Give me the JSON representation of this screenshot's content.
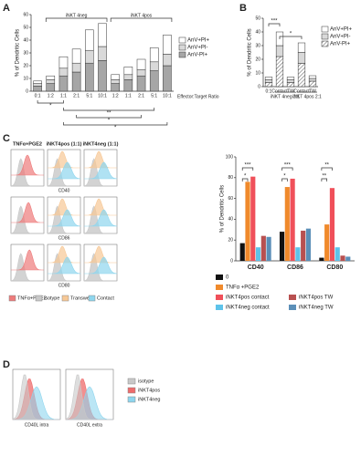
{
  "panel_labels": [
    "A",
    "B",
    "C",
    "D"
  ],
  "chart_data": [
    {
      "type": "stacked_bar",
      "ylabel": "% of Dendritic Cells",
      "xlabel": "Effector:Target Ratio",
      "categories": [
        "0:1",
        "1:2",
        "1:1",
        "2:1",
        "5:1",
        "10:1",
        "1:2",
        "1:1",
        "2:1",
        "5:1",
        "10:1"
      ],
      "groups": [
        "iNKT 4neg",
        "iNKT 4pos"
      ],
      "series": [
        {
          "name": "AnV-PI+",
          "color": "#a6a6a6",
          "values": [
            4,
            6,
            12,
            15,
            22,
            24,
            6,
            9,
            12,
            16,
            20
          ]
        },
        {
          "name": "AnV+PI-",
          "color": "#d9d9d9",
          "values": [
            2,
            3,
            6,
            7,
            10,
            11,
            3,
            4,
            5,
            7,
            9
          ]
        },
        {
          "name": "AnV+PI+",
          "color": "#ffffff",
          "values": [
            2,
            3,
            9,
            11,
            16,
            18,
            4,
            6,
            8,
            11,
            15
          ]
        }
      ],
      "ylim": [
        0,
        60
      ],
      "yticks": [
        0,
        10,
        20,
        30,
        40,
        50,
        60
      ],
      "annotations": [
        "*",
        "**",
        "*",
        "*"
      ]
    },
    {
      "type": "stacked_bar",
      "ylabel": "% of Dendritic Cells",
      "categories": [
        "0:1",
        "Contact",
        "TW",
        "Contact",
        "TW"
      ],
      "groups": [
        "iNKT 4neg 2:1",
        "iNKT 4pos 2:1"
      ],
      "series": [
        {
          "name": "AnV-PI+",
          "color": "#ffffff",
          "hatch": true,
          "values": [
            3,
            22,
            3,
            17,
            4
          ]
        },
        {
          "name": "AnV+PI-",
          "color": "#d9d9d9",
          "values": [
            2,
            8,
            2,
            8,
            2
          ]
        },
        {
          "name": "AnV+PI+",
          "color": "#ffffff",
          "values": [
            2,
            10,
            2,
            7,
            2
          ]
        }
      ],
      "ylim": [
        0,
        50
      ],
      "yticks": [
        0,
        10,
        20,
        30,
        40,
        50
      ],
      "annotations": [
        "***",
        "*"
      ]
    },
    {
      "type": "grouped_bar",
      "ylabel": "% of Dendritic Cells",
      "categories": [
        "CD40",
        "CD86",
        "CD80"
      ],
      "series": [
        {
          "name": "0",
          "color": "#111111",
          "values": [
            17,
            28,
            3
          ]
        },
        {
          "name": "TNFα +PGE2",
          "color": "#f08a2c",
          "values": [
            76,
            71,
            35
          ]
        },
        {
          "name": "iNKT4pos contact",
          "color": "#f0505a",
          "values": [
            81,
            79,
            70
          ]
        },
        {
          "name": "iNKT4neg contact",
          "color": "#5ec3ea",
          "values": [
            13,
            13,
            13
          ]
        },
        {
          "name": "iNKT4pos TW",
          "color": "#b85050",
          "values": [
            24,
            29,
            5
          ]
        },
        {
          "name": "iNKT4neg TW",
          "color": "#5b8fb8",
          "values": [
            23,
            31,
            4
          ]
        }
      ],
      "ylim": [
        0,
        100
      ],
      "yticks": [
        0,
        20,
        40,
        60,
        80,
        100
      ],
      "annotations": [
        "***",
        "*",
        "***",
        "*",
        "**",
        "**"
      ]
    }
  ],
  "flow": {
    "columns": [
      "TNFα+PGE2",
      "iNKT4pos (1:1)",
      "iNKT4neg (1:1)"
    ],
    "rows": [
      "CD40",
      "CD86",
      "CD80"
    ],
    "legend": [
      {
        "label": "TNFα+PGE2",
        "color": "#ee7b7b"
      },
      {
        "label": "isotype",
        "color": "#c8c8c8"
      },
      {
        "label": "Transwell",
        "color": "#f7c896"
      },
      {
        "label": "Contact",
        "color": "#8ed6ee"
      }
    ]
  },
  "panel_d": {
    "axes": [
      "CD40L intra",
      "CD40L extra"
    ],
    "legend": [
      {
        "label": "isotype",
        "color": "#c8c8c8"
      },
      {
        "label": "iNKT4pos",
        "color": "#ee6b6b"
      },
      {
        "label": "iNKT4neg",
        "color": "#8ed6ee"
      }
    ]
  }
}
